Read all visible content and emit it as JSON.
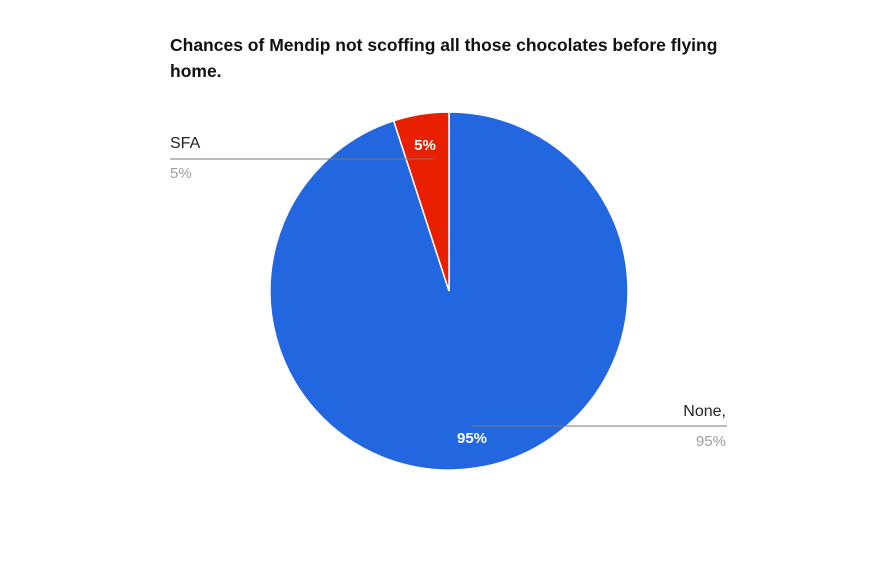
{
  "chart_data": {
    "type": "pie",
    "title": "Chances of Mendip not scoffing all those chocolates before flying home.",
    "slices": [
      {
        "name": "None,",
        "value": 95,
        "slice_label": "95%",
        "legend_pct": "95%",
        "color": "#2266e0"
      },
      {
        "name": "SFA",
        "value": 5,
        "slice_label": "5%",
        "legend_pct": "5%",
        "color": "#e82000"
      }
    ],
    "legend": "callout labels"
  }
}
